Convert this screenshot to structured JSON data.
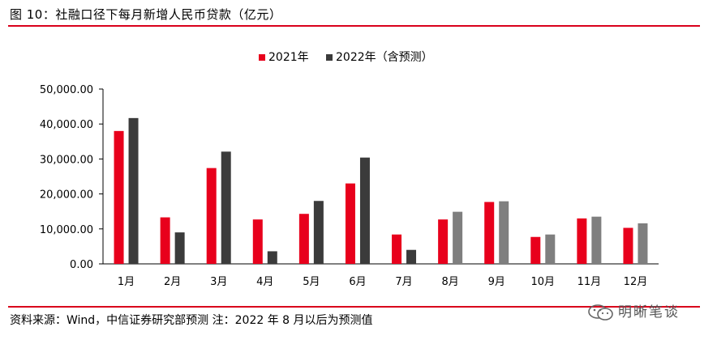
{
  "header": {
    "title": "图 10：社融口径下每月新增人民币贷款（亿元）"
  },
  "footer": {
    "source": "资料来源：Wind，中信证券研究部预测 注：2022 年 8 月以后为预测值",
    "watermark": "明晰笔谈"
  },
  "colors": {
    "red": "#e8001c",
    "dark": "#3b3b3b",
    "forecast": "#7f7f7f",
    "rule": "#d9001b"
  },
  "chart_data": {
    "type": "bar",
    "categories": [
      "1月",
      "2月",
      "3月",
      "4月",
      "5月",
      "6月",
      "7月",
      "8月",
      "9月",
      "10月",
      "11月",
      "12月"
    ],
    "series": [
      {
        "name": "2021年",
        "values": [
          38000,
          13300,
          27400,
          12700,
          14300,
          23000,
          8400,
          12700,
          17700,
          7700,
          13000,
          10300
        ]
      },
      {
        "name": "2022年（含预测）",
        "values": [
          41700,
          9000,
          32100,
          3600,
          18000,
          30400,
          4000,
          14900,
          17900,
          8400,
          13500,
          11600
        ],
        "forecast_from_index": 7
      }
    ],
    "y_tick_labels": [
      "0.00",
      "10,000.00",
      "20,000.00",
      "30,000.00",
      "40,000.00",
      "50,000.00"
    ],
    "ylim": [
      0,
      50000
    ],
    "grid": false,
    "legend_position": "top-center"
  }
}
